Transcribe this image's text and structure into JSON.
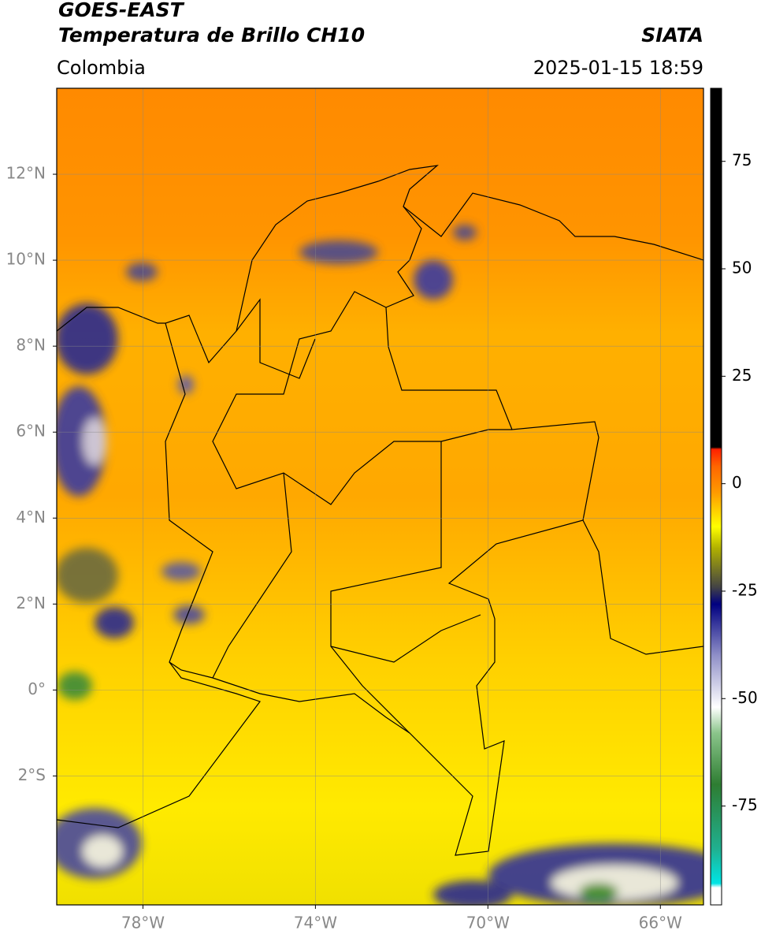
{
  "header": {
    "title_line1": "GOES-EAST",
    "title_line2": "Temperatura de Brillo CH10",
    "source": "SIATA",
    "region": "Colombia",
    "datetime": "2025-01-15 18:59"
  },
  "map": {
    "xlim": [
      -80,
      -65
    ],
    "ylim": [
      -5,
      14
    ],
    "grid": true,
    "xticks": [
      {
        "value": -78,
        "label": "78°W"
      },
      {
        "value": -74,
        "label": "74°W"
      },
      {
        "value": -70,
        "label": "70°W"
      },
      {
        "value": -66,
        "label": "66°W"
      }
    ],
    "yticks": [
      {
        "value": 12,
        "label": "12°N"
      },
      {
        "value": 10,
        "label": "10°N"
      },
      {
        "value": 8,
        "label": "8°N"
      },
      {
        "value": 6,
        "label": "6°N"
      },
      {
        "value": 4,
        "label": "4°N"
      },
      {
        "value": 2,
        "label": "2°N"
      },
      {
        "value": 0,
        "label": "0°"
      },
      {
        "value": -2,
        "label": "2°S"
      }
    ]
  },
  "colorbar": {
    "lim": [
      -98,
      92
    ],
    "ticks": [
      75,
      50,
      25,
      0,
      -25,
      -50,
      -75
    ],
    "colorscale": [
      {
        "value": -98,
        "color": "#ffffff"
      },
      {
        "value": -94,
        "color": "#ffffff"
      },
      {
        "value": -93,
        "color": "#00e5e5"
      },
      {
        "value": -85,
        "color": "#20b090"
      },
      {
        "value": -70,
        "color": "#2e7d32"
      },
      {
        "value": -58,
        "color": "#8bc58b"
      },
      {
        "value": -52,
        "color": "#ffffff"
      },
      {
        "value": -40,
        "color": "#9090c8"
      },
      {
        "value": -28,
        "color": "#000080"
      },
      {
        "value": -24,
        "color": "#444444"
      },
      {
        "value": -15,
        "color": "#b0b000"
      },
      {
        "value": -10,
        "color": "#ffff00"
      },
      {
        "value": -2,
        "color": "#ff9900"
      },
      {
        "value": 4,
        "color": "#ff6600"
      },
      {
        "value": 8,
        "color": "#ff2000"
      },
      {
        "value": 8.5,
        "color": "#000000"
      },
      {
        "value": 92,
        "color": "#000000"
      }
    ]
  }
}
